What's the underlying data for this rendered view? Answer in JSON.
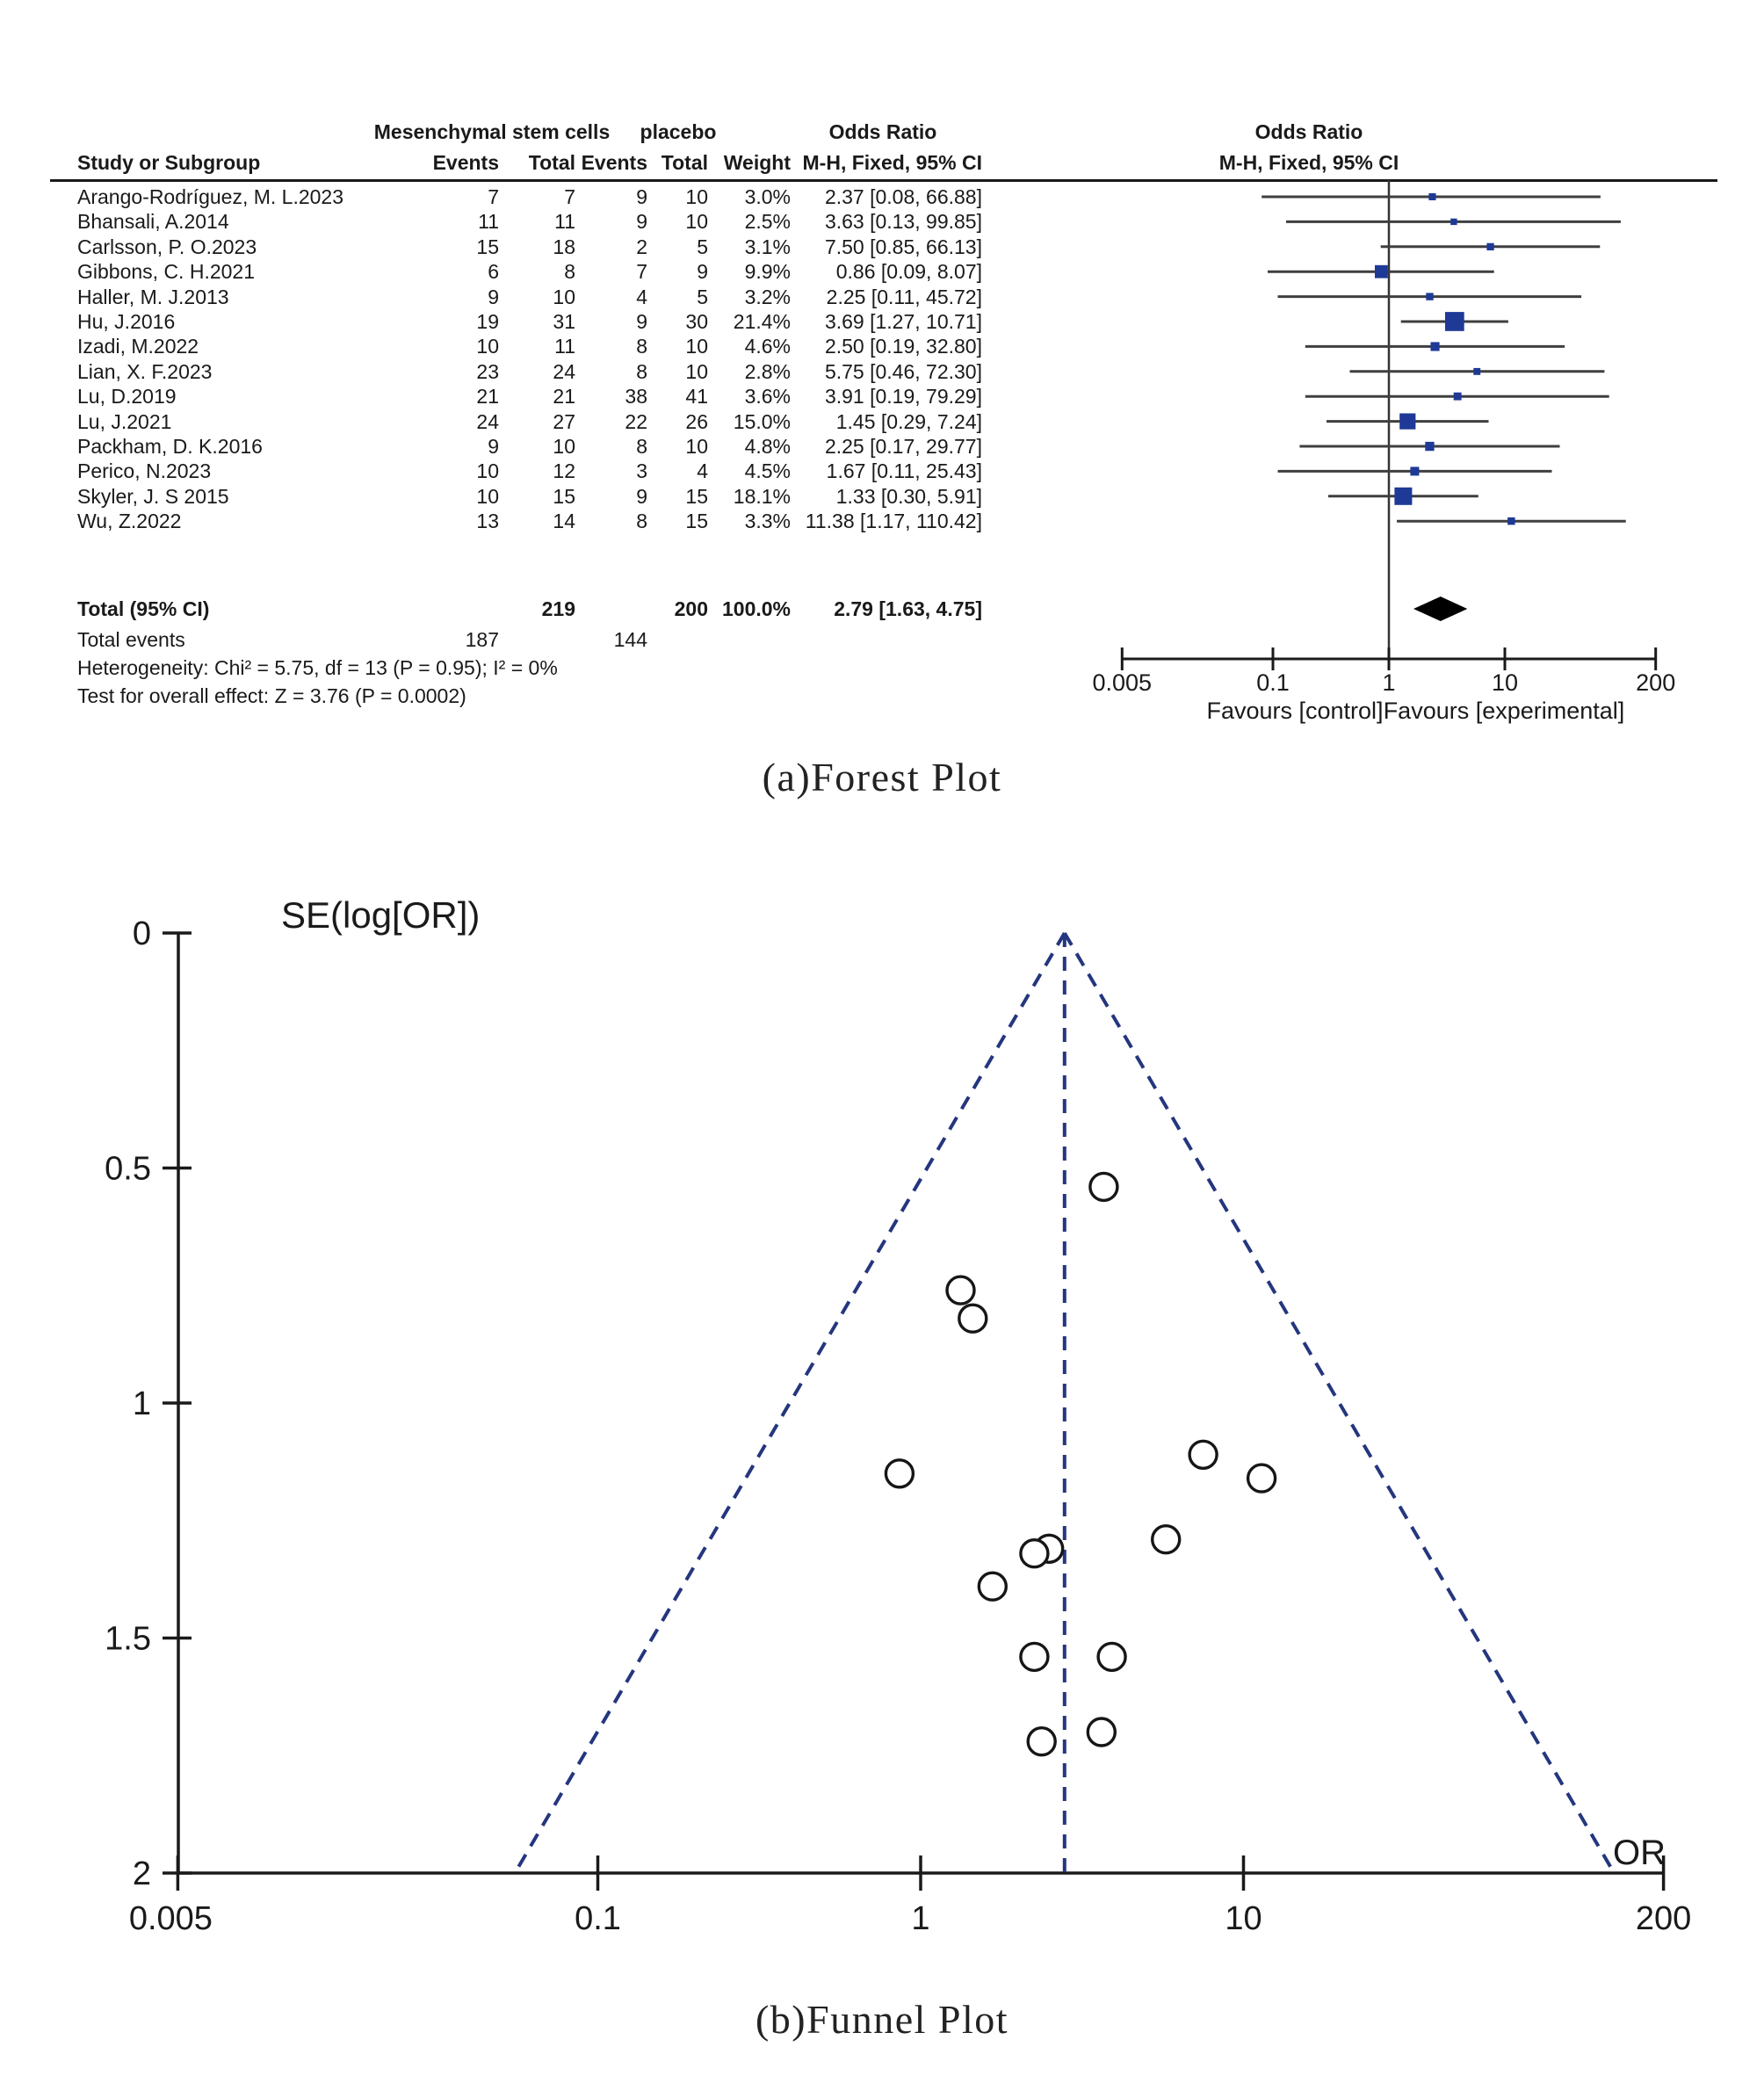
{
  "figure": {
    "caption_a": "(a)Forest Plot",
    "caption_b": "(b)Funnel Plot"
  },
  "forest": {
    "group_experimental": "Mesenchymal stem cells",
    "group_control": "placebo",
    "odds_ratio_header": "Odds Ratio",
    "method_header": "M-H, Fixed, 95% CI",
    "study_col": "Study or Subgroup",
    "events_col": "Events",
    "total_col": "Total",
    "weight_col": "Weight",
    "total_row": {
      "label": "Total (95% CI)",
      "total1": "219",
      "total2": "200",
      "weight": "100.0%",
      "or_ci": "2.79 [1.63, 4.75]"
    },
    "total_events": {
      "label": "Total events",
      "events1": "187",
      "events2": "144"
    },
    "heterogeneity": "Heterogeneity: Chi² = 5.75, df = 13 (P = 0.95); I² = 0%",
    "overall_effect": "Test for overall effect: Z = 3.76 (P = 0.0002)",
    "favours_left": "Favours [control]",
    "favours_right": "Favours [experimental]",
    "square_color": "#1e3a96",
    "diamond_color": "#000000",
    "line_color": "#3f3f3f"
  },
  "funnel": {
    "ylabel": "SE(log[OR])",
    "xlabel": "OR",
    "dash_color": "#24367e",
    "circle_color": "#161616"
  },
  "chart_data": [
    {
      "type": "table",
      "name": "forest-plot",
      "title": "(a)Forest Plot",
      "effect_measure": "Odds Ratio, M-H, Fixed, 95% CI",
      "x_axis": {
        "scale": "log",
        "ticks": [
          0.005,
          0.1,
          1,
          10,
          200
        ]
      },
      "rows": [
        {
          "name": "Arango-Rodríguez, M. L.2023",
          "events1": 7,
          "total1": 7,
          "events2": 9,
          "total2": 10,
          "weight_pct": 3.0,
          "weight_label": "3.0%",
          "or": 2.37,
          "ci_low": 0.08,
          "ci_high": 66.88,
          "or_ci_label": "2.37 [0.08, 66.88]"
        },
        {
          "name": "Bhansali, A.2014",
          "events1": 11,
          "total1": 11,
          "events2": 9,
          "total2": 10,
          "weight_pct": 2.5,
          "weight_label": "2.5%",
          "or": 3.63,
          "ci_low": 0.13,
          "ci_high": 99.85,
          "or_ci_label": "3.63 [0.13, 99.85]"
        },
        {
          "name": "Carlsson, P. O.2023",
          "events1": 15,
          "total1": 18,
          "events2": 2,
          "total2": 5,
          "weight_pct": 3.1,
          "weight_label": "3.1%",
          "or": 7.5,
          "ci_low": 0.85,
          "ci_high": 66.13,
          "or_ci_label": "7.50 [0.85, 66.13]"
        },
        {
          "name": "Gibbons, C. H.2021",
          "events1": 6,
          "total1": 8,
          "events2": 7,
          "total2": 9,
          "weight_pct": 9.9,
          "weight_label": "9.9%",
          "or": 0.86,
          "ci_low": 0.09,
          "ci_high": 8.07,
          "or_ci_label": "0.86 [0.09, 8.07]"
        },
        {
          "name": "Haller, M. J.2013",
          "events1": 9,
          "total1": 10,
          "events2": 4,
          "total2": 5,
          "weight_pct": 3.2,
          "weight_label": "3.2%",
          "or": 2.25,
          "ci_low": 0.11,
          "ci_high": 45.72,
          "or_ci_label": "2.25 [0.11, 45.72]"
        },
        {
          "name": "Hu, J.2016",
          "events1": 19,
          "total1": 31,
          "events2": 9,
          "total2": 30,
          "weight_pct": 21.4,
          "weight_label": "21.4%",
          "or": 3.69,
          "ci_low": 1.27,
          "ci_high": 10.71,
          "or_ci_label": "3.69 [1.27, 10.71]"
        },
        {
          "name": "Izadi, M.2022",
          "events1": 10,
          "total1": 11,
          "events2": 8,
          "total2": 10,
          "weight_pct": 4.6,
          "weight_label": "4.6%",
          "or": 2.5,
          "ci_low": 0.19,
          "ci_high": 32.8,
          "or_ci_label": "2.50 [0.19, 32.80]"
        },
        {
          "name": "Lian, X. F.2023",
          "events1": 23,
          "total1": 24,
          "events2": 8,
          "total2": 10,
          "weight_pct": 2.8,
          "weight_label": "2.8%",
          "or": 5.75,
          "ci_low": 0.46,
          "ci_high": 72.3,
          "or_ci_label": "5.75 [0.46, 72.30]"
        },
        {
          "name": "Lu, D.2019",
          "events1": 21,
          "total1": 21,
          "events2": 38,
          "total2": 41,
          "weight_pct": 3.6,
          "weight_label": "3.6%",
          "or": 3.91,
          "ci_low": 0.19,
          "ci_high": 79.29,
          "or_ci_label": "3.91 [0.19, 79.29]"
        },
        {
          "name": "Lu, J.2021",
          "events1": 24,
          "total1": 27,
          "events2": 22,
          "total2": 26,
          "weight_pct": 15.0,
          "weight_label": "15.0%",
          "or": 1.45,
          "ci_low": 0.29,
          "ci_high": 7.24,
          "or_ci_label": "1.45 [0.29, 7.24]"
        },
        {
          "name": "Packham, D. K.2016",
          "events1": 9,
          "total1": 10,
          "events2": 8,
          "total2": 10,
          "weight_pct": 4.8,
          "weight_label": "4.8%",
          "or": 2.25,
          "ci_low": 0.17,
          "ci_high": 29.77,
          "or_ci_label": "2.25 [0.17, 29.77]"
        },
        {
          "name": "Perico, N.2023",
          "events1": 10,
          "total1": 12,
          "events2": 3,
          "total2": 4,
          "weight_pct": 4.5,
          "weight_label": "4.5%",
          "or": 1.67,
          "ci_low": 0.11,
          "ci_high": 25.43,
          "or_ci_label": "1.67 [0.11, 25.43]"
        },
        {
          "name": "Skyler, J. S 2015",
          "events1": 10,
          "total1": 15,
          "events2": 9,
          "total2": 15,
          "weight_pct": 18.1,
          "weight_label": "18.1%",
          "or": 1.33,
          "ci_low": 0.3,
          "ci_high": 5.91,
          "or_ci_label": "1.33 [0.30, 5.91]"
        },
        {
          "name": "Wu, Z.2022",
          "events1": 13,
          "total1": 14,
          "events2": 8,
          "total2": 15,
          "weight_pct": 3.3,
          "weight_label": "3.3%",
          "or": 11.38,
          "ci_low": 1.17,
          "ci_high": 110.42,
          "or_ci_label": "11.38 [1.17, 110.42]"
        }
      ],
      "total": {
        "total1": 219,
        "total2": 200,
        "weight_pct": 100.0,
        "or": 2.79,
        "ci_low": 1.63,
        "ci_high": 4.75
      },
      "total_events": {
        "experimental": 187,
        "control": 144
      },
      "heterogeneity": {
        "chi2": 5.75,
        "df": 13,
        "p": 0.95,
        "i2_pct": 0
      },
      "overall_effect": {
        "z": 3.76,
        "p": 0.0002
      }
    },
    {
      "type": "scatter",
      "name": "funnel-plot",
      "title": "(b)Funnel Plot",
      "xlabel": "OR",
      "ylabel": "SE(log[OR])",
      "x_scale": "log",
      "xlim": [
        0.005,
        200
      ],
      "ylim": [
        0,
        2
      ],
      "y_inverted": true,
      "x_ticks": [
        0.005,
        0.1,
        1,
        10,
        200
      ],
      "y_ticks": [
        0,
        0.5,
        1,
        1.5,
        2
      ],
      "center_or": 2.79,
      "pseudo_ci": "95%",
      "points": [
        {
          "or": 2.37,
          "se": 1.72
        },
        {
          "or": 3.63,
          "se": 1.7
        },
        {
          "or": 7.5,
          "se": 1.11
        },
        {
          "or": 0.86,
          "se": 1.15
        },
        {
          "or": 2.25,
          "se": 1.54
        },
        {
          "or": 3.69,
          "se": 0.54
        },
        {
          "or": 2.5,
          "se": 1.31
        },
        {
          "or": 5.75,
          "se": 1.29
        },
        {
          "or": 3.91,
          "se": 1.54
        },
        {
          "or": 1.45,
          "se": 0.82
        },
        {
          "or": 2.25,
          "se": 1.32
        },
        {
          "or": 1.67,
          "se": 1.39
        },
        {
          "or": 1.33,
          "se": 0.76
        },
        {
          "or": 11.38,
          "se": 1.16
        }
      ]
    }
  ]
}
